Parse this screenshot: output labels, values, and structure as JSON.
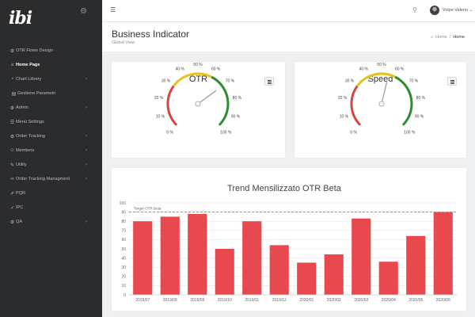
{
  "brand": {
    "logo_text": "ibi"
  },
  "sidebar": {
    "items": [
      {
        "label": "OTR Flows Design",
        "icon": "sitemap-icon",
        "glyph": "⚙",
        "chevron": false,
        "active": false
      },
      {
        "label": "Home Page",
        "icon": "home-icon",
        "glyph": "⌂",
        "chevron": false,
        "active": true
      },
      {
        "label": "Chart Library",
        "icon": "chart-icon",
        "glyph": "◔",
        "chevron": true,
        "active": false
      },
      {
        "label": "Gestione Parametri",
        "icon": "table-icon",
        "glyph": "▤",
        "chevron": false,
        "active": false,
        "sub": true
      },
      {
        "label": "Admin",
        "icon": "cogs-icon",
        "glyph": "⚙",
        "chevron": true,
        "active": false
      },
      {
        "label": "Menù Settings",
        "icon": "menu-settings-icon",
        "glyph": "☰",
        "chevron": false,
        "active": false
      },
      {
        "label": "Order Tracking",
        "icon": "cogs-icon",
        "glyph": "⚙",
        "chevron": true,
        "active": false
      },
      {
        "label": "Members",
        "icon": "user-icon",
        "glyph": "☺",
        "chevron": true,
        "active": false
      },
      {
        "label": "Utility",
        "icon": "wrench-icon",
        "glyph": "✎",
        "chevron": true,
        "active": false
      },
      {
        "label": "Order Tracking Managment",
        "icon": "link-icon",
        "glyph": "∞",
        "chevron": true,
        "active": false
      },
      {
        "label": "PQR",
        "icon": "edit-icon",
        "glyph": "✐",
        "chevron": false,
        "active": false
      },
      {
        "label": "IPC",
        "icon": "check-icon",
        "glyph": "✓",
        "chevron": false,
        "active": false
      },
      {
        "label": "QA",
        "icon": "cogs-icon",
        "glyph": "⚙",
        "chevron": true,
        "active": false
      }
    ]
  },
  "topbar": {
    "username": "Volpe Valerio"
  },
  "header": {
    "title": "Business Indicator",
    "subtitle": "Global View",
    "breadcrumb": {
      "home": "Home",
      "separator": "/",
      "current": "Home"
    }
  },
  "gauges": [
    {
      "title": "OTR",
      "min": 0,
      "max": 100,
      "value": 70,
      "tick_labels": [
        "0 %",
        "10 %",
        "20 %",
        "30 %",
        "40 %",
        "50 %",
        "60 %",
        "70 %",
        "80 %",
        "90 %",
        "100 %"
      ]
    },
    {
      "title": "Speed",
      "min": 0,
      "max": 100,
      "value": 55,
      "tick_labels": [
        "0 %",
        "10 %",
        "20 %",
        "30 %",
        "40 %",
        "50 %",
        "60 %",
        "70 %",
        "80 %",
        "90 %",
        "100 %"
      ]
    }
  ],
  "colors": {
    "red": "#d64541",
    "yellow": "#e6c21c",
    "green": "#2e8b2e",
    "bar": "#e8494f",
    "target": "#e8494f"
  },
  "chart_data": {
    "type": "bar",
    "title": "Trend Mensilizzato OTR Beta",
    "categories": [
      "2019/07",
      "2019/08",
      "2019/09",
      "2019/10",
      "2019/11",
      "2019/12",
      "2020/01",
      "2020/02",
      "2020/03",
      "2020/04",
      "2020/05",
      "2020/06"
    ],
    "values": [
      80,
      85,
      88,
      50,
      80,
      54,
      35,
      44,
      83,
      36,
      64,
      90
    ],
    "target": {
      "label": "Target OTR Beta",
      "value": 90
    },
    "ylim": [
      0,
      100
    ],
    "yticks": [
      0,
      10,
      20,
      30,
      40,
      50,
      60,
      70,
      80,
      90,
      100
    ]
  }
}
